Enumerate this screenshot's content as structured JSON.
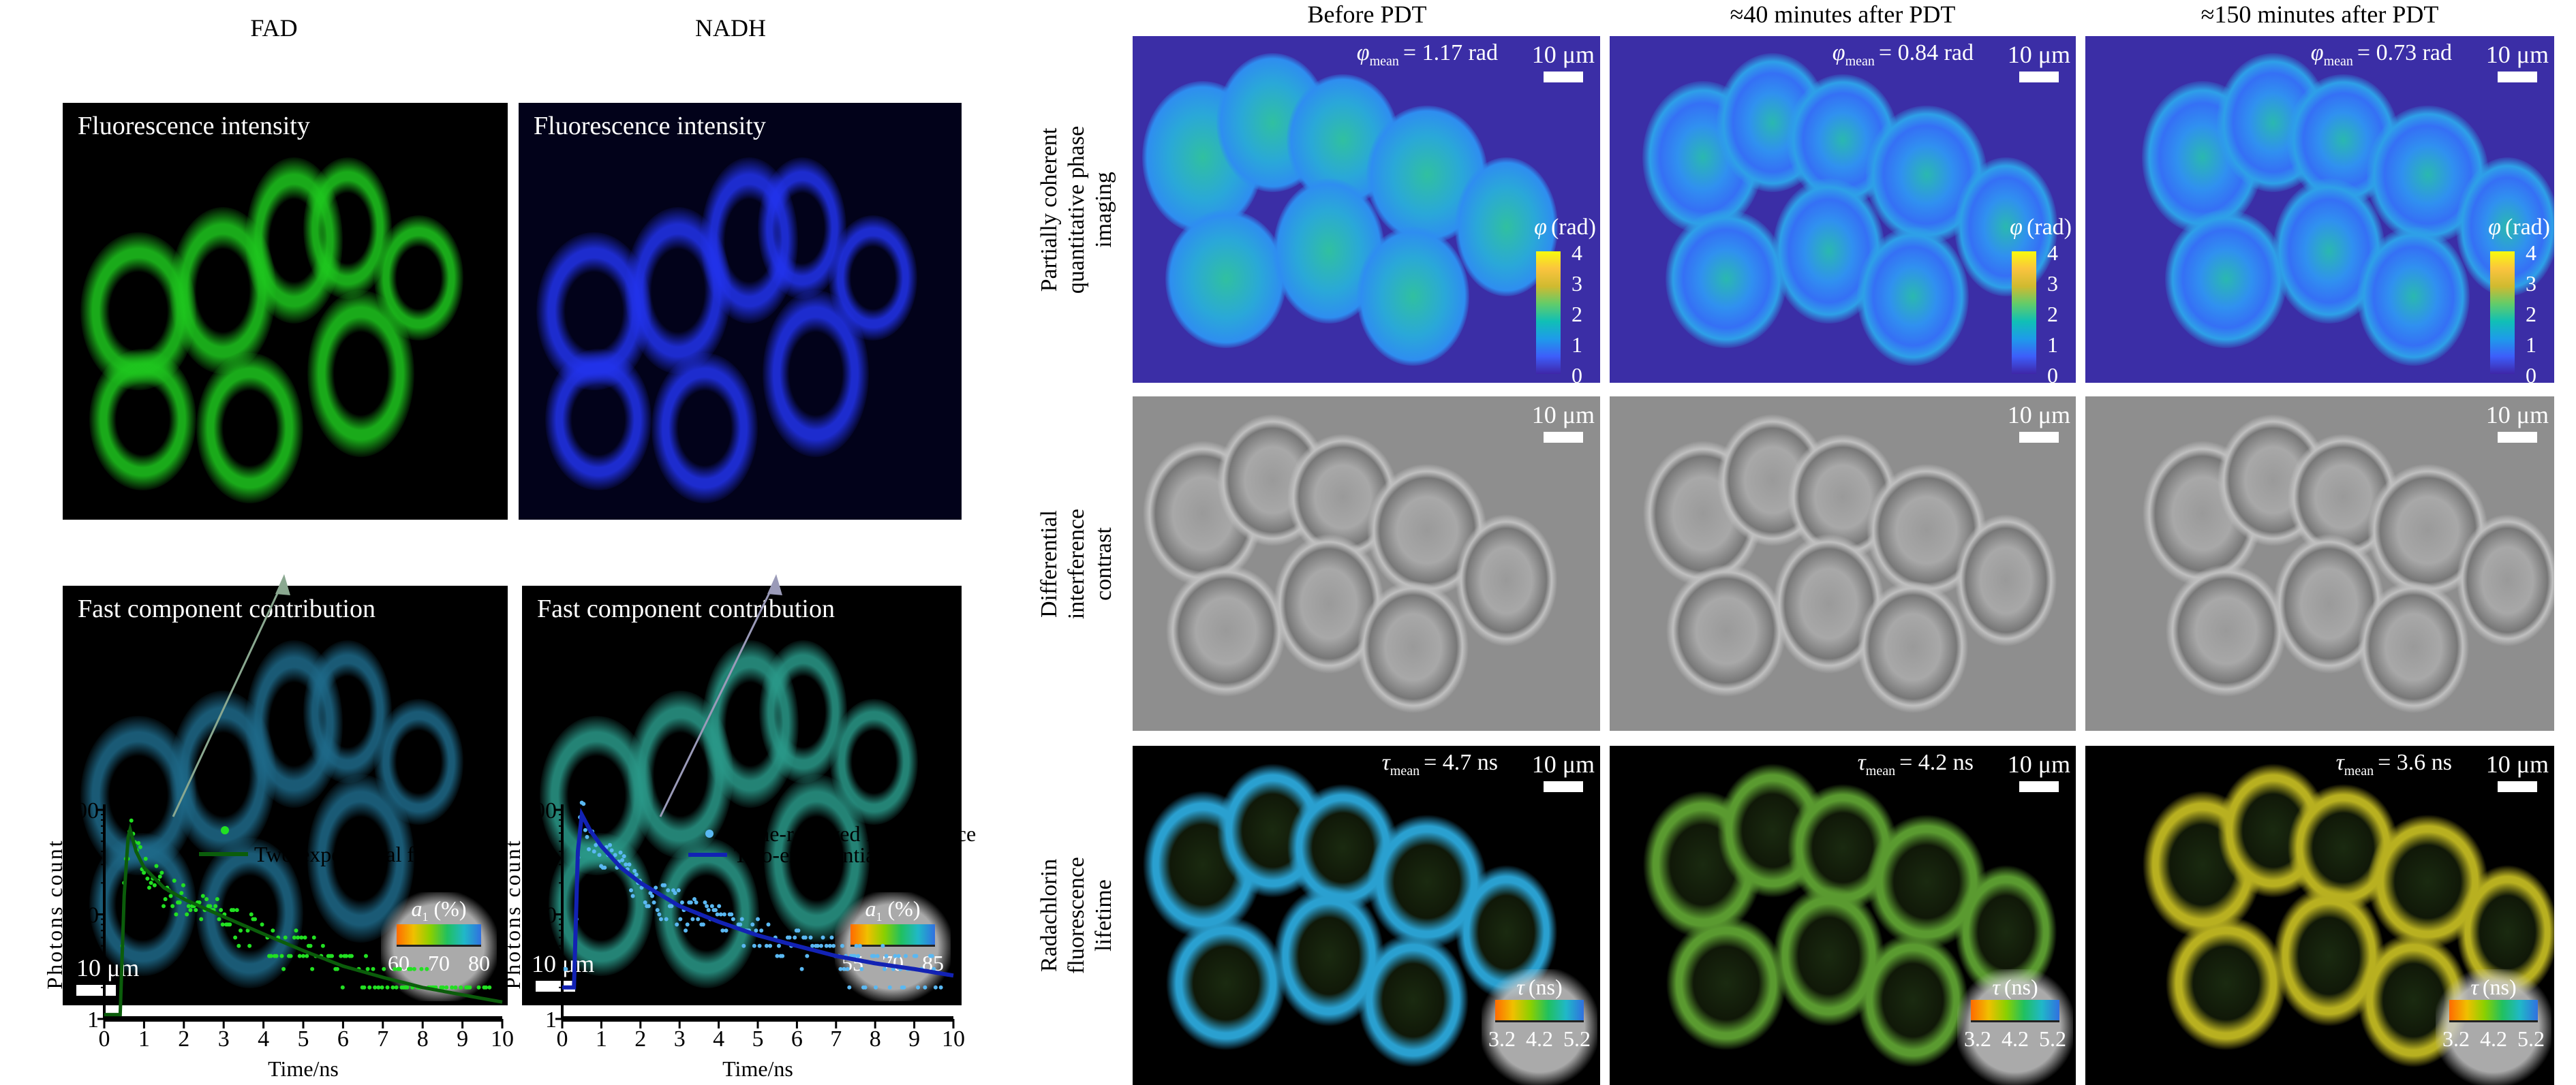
{
  "left": {
    "col_headers": [
      "FAD",
      "NADH"
    ],
    "panels": [
      {
        "caption": "Fluorescence intensity"
      },
      {
        "caption": "Fluorescence intensity"
      },
      {
        "caption": "Fast component contribution",
        "scale": "10 μm",
        "colorbar": {
          "label_symbol": "a",
          "label_sub": "1",
          "label_unit": "(%)",
          "ticks": [
            "60",
            "70",
            "80"
          ]
        }
      },
      {
        "caption": "Fast component contribution",
        "scale": "10 μm",
        "colorbar": {
          "label_symbol": "a",
          "label_sub": "1",
          "label_unit": "(%)",
          "ticks": [
            "55",
            "70",
            "85"
          ]
        }
      }
    ]
  },
  "right": {
    "col_headers": [
      "Before PDT",
      "≈40 minutes after PDT",
      "≈150 minutes after PDT"
    ],
    "row_labels": [
      [
        "Partially coherent",
        "quantitative phase",
        "imaging"
      ],
      [
        "Differential",
        "interference",
        "contrast"
      ],
      [
        "Radachlorin",
        "fluorescence",
        "lifetime"
      ]
    ],
    "phase": {
      "symbol": "φ",
      "sub": "mean",
      "values": [
        "= 1.17 rad",
        "= 0.84 rad",
        "= 0.73 rad"
      ],
      "colorbar_label": "(rad)",
      "ticks": [
        "4",
        "3",
        "2",
        "1",
        "0"
      ]
    },
    "lifetime": {
      "symbol": "τ",
      "sub": "mean",
      "values": [
        "= 4.7 ns",
        "= 4.2 ns",
        "= 3.6 ns"
      ],
      "colorbar_label": "(ns)",
      "ticks": [
        "3.2",
        "4.2",
        "5.2"
      ]
    },
    "scale": "10 μm"
  },
  "colors": {
    "fad_points": "#22e022",
    "fad_fit": "#0b5d0b",
    "nadh_points": "#5ab8f2",
    "nadh_fit": "#1222b4",
    "fad_arrow": "#8aa890",
    "nadh_arrow": "#9a9ab8"
  },
  "chart_data": [
    {
      "type": "scatter",
      "title": "",
      "xlabel": "Time/ns",
      "ylabel": "Photons count",
      "xlim": [
        0,
        10
      ],
      "ylim": [
        1,
        100
      ],
      "yscale": "log",
      "xticks": [
        "0",
        "1",
        "2",
        "3",
        "4",
        "5",
        "6",
        "7",
        "8",
        "9",
        "10"
      ],
      "yticks": [
        "1",
        "10",
        "100"
      ],
      "legend": [
        "",
        "Two-exponential fitting"
      ],
      "legend_placement": "top-right",
      "series": [
        {
          "name": "Two-exponential fitting",
          "kind": "line",
          "x": [
            0,
            0.4,
            0.5,
            0.6,
            0.65,
            0.8,
            1,
            1.5,
            2,
            3,
            4,
            5,
            6,
            7,
            8,
            9,
            10
          ],
          "y": [
            1.1,
            1.1,
            15,
            55,
            65,
            40,
            28,
            18,
            14,
            9.5,
            6.5,
            4.5,
            3.2,
            2.5,
            2.0,
            1.7,
            1.45
          ]
        }
      ]
    },
    {
      "type": "scatter",
      "title": "",
      "xlabel": "Time/ns",
      "ylabel": "Photons count",
      "xlim": [
        0,
        10
      ],
      "ylim": [
        1,
        100
      ],
      "yscale": "log",
      "xticks": [
        "0",
        "1",
        "2",
        "3",
        "4",
        "5",
        "6",
        "7",
        "8",
        "9",
        "10"
      ],
      "yticks": [
        "1",
        "10",
        "100"
      ],
      "legend": [
        "Time-resolved fluorescence",
        "Two-exponential fitting"
      ],
      "legend_placement": "top-right",
      "series": [
        {
          "name": "Two-exponential fitting",
          "kind": "line",
          "x": [
            0,
            0.3,
            0.4,
            0.5,
            0.7,
            1,
            1.5,
            2,
            3,
            4,
            5,
            6,
            7,
            8,
            9,
            10
          ],
          "y": [
            2,
            2,
            40,
            90,
            65,
            45,
            28,
            20,
            12,
            8.5,
            6.3,
            5,
            4,
            3.4,
            3.0,
            2.6
          ]
        }
      ]
    }
  ]
}
